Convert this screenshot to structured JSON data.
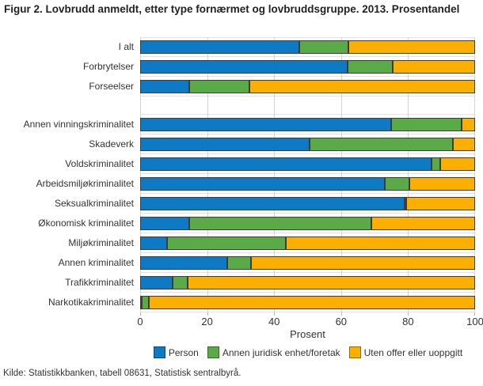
{
  "figure": {
    "title": "Figur 2. Lovbrudd anmeldt, etter type fornærmet og lovbruddsgruppe. 2013. Prosentandel",
    "source": "Kilde: Statistikkbanken, tabell 08631, Statistisk sentralbyrå."
  },
  "chart_data": {
    "type": "bar",
    "orientation": "horizontal",
    "stacked": true,
    "title": "Figur 2. Lovbrudd anmeldt, etter type fornærmet og lovbruddsgruppe. 2013. Prosentandel",
    "xlabel": "Prosent",
    "ylabel": "",
    "xlim": [
      0,
      100
    ],
    "ticks": [
      0,
      20,
      40,
      60,
      80,
      100
    ],
    "grid": true,
    "legend_position": "bottom",
    "group_break_after": 2,
    "categories": [
      "I alt",
      "Forbrytelser",
      "Forseelser",
      "Annen vinningskriminalitet",
      "Skadeverk",
      "Voldskriminalitet",
      "Arbeidsmiljøkriminalitet",
      "Seksualkriminalitet",
      "Økonomisk kriminalitet",
      "Miljøkriminalitet",
      "Annen kriminalitet",
      "Trafikkriminalitet",
      "Narkotikakriminalitet"
    ],
    "series": [
      {
        "name": "Person",
        "color": "#0e7ac4",
        "values": [
          47.5,
          62.0,
          14.7,
          75.0,
          50.5,
          87.0,
          73.0,
          79.0,
          14.7,
          8.0,
          26.0,
          9.8,
          0.4
        ]
      },
      {
        "name": "Annen juridisk enhet/foretak",
        "color": "#5aab47",
        "values": [
          14.6,
          13.3,
          18.0,
          21.0,
          43.0,
          2.5,
          7.3,
          0.5,
          54.4,
          35.4,
          7.0,
          4.5,
          2.1
        ]
      },
      {
        "name": "Uten offer eller uoppgitt",
        "color": "#fbaf00",
        "values": [
          37.9,
          24.7,
          67.3,
          4.0,
          6.5,
          10.5,
          19.7,
          20.5,
          30.9,
          56.6,
          67.0,
          85.7,
          97.5
        ]
      }
    ],
    "colors": {
      "grid_vertical": "#d4d4d4",
      "grid_horizontal": "#e3e3e3",
      "bar_border": "#3d3d3d"
    }
  }
}
